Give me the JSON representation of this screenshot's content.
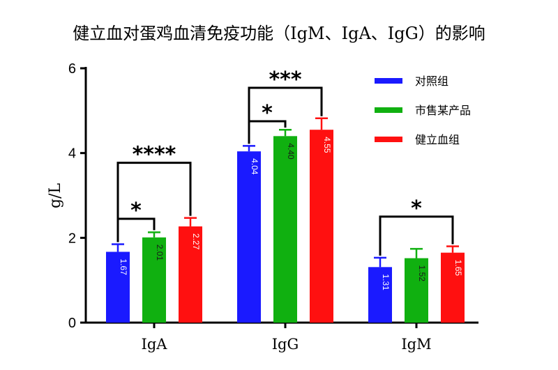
{
  "chart_data": {
    "type": "bar",
    "title": "健立血对蛋鸡血清免疫功能（IgM、IgA、IgG）的影响",
    "xlabel": "",
    "ylabel": "g/L",
    "ylim": [
      0,
      6
    ],
    "yticks": [
      0,
      2,
      4,
      6
    ],
    "grid": false,
    "legend_position": "top-right",
    "categories": [
      "IgA",
      "IgG",
      "IgM"
    ],
    "series": [
      {
        "name": "对照组",
        "color": "#1a1aff",
        "values": [
          1.67,
          4.04,
          1.31
        ],
        "errors": [
          0.18,
          0.13,
          0.22
        ],
        "labels": [
          "1.67",
          "4.04",
          "1.31"
        ]
      },
      {
        "name": "市售某产品",
        "color": "#10b010",
        "values": [
          2.01,
          4.4,
          1.52
        ],
        "errors": [
          0.12,
          0.15,
          0.22
        ],
        "labels": [
          "2.01",
          "4.40",
          "1.52"
        ]
      },
      {
        "name": "健立血组",
        "color": "#ff1010",
        "values": [
          2.27,
          4.55,
          1.65
        ],
        "errors": [
          0.2,
          0.27,
          0.15
        ],
        "labels": [
          "2.27",
          "4.55",
          "1.65"
        ]
      }
    ],
    "significance": [
      {
        "category": 0,
        "from": 0,
        "to": 1,
        "label": "*"
      },
      {
        "category": 0,
        "from": 0,
        "to": 2,
        "label": "****"
      },
      {
        "category": 1,
        "from": 0,
        "to": 1,
        "label": "*"
      },
      {
        "category": 1,
        "from": 0,
        "to": 2,
        "label": "***"
      },
      {
        "category": 2,
        "from": 0,
        "to": 2,
        "label": "*"
      }
    ]
  }
}
